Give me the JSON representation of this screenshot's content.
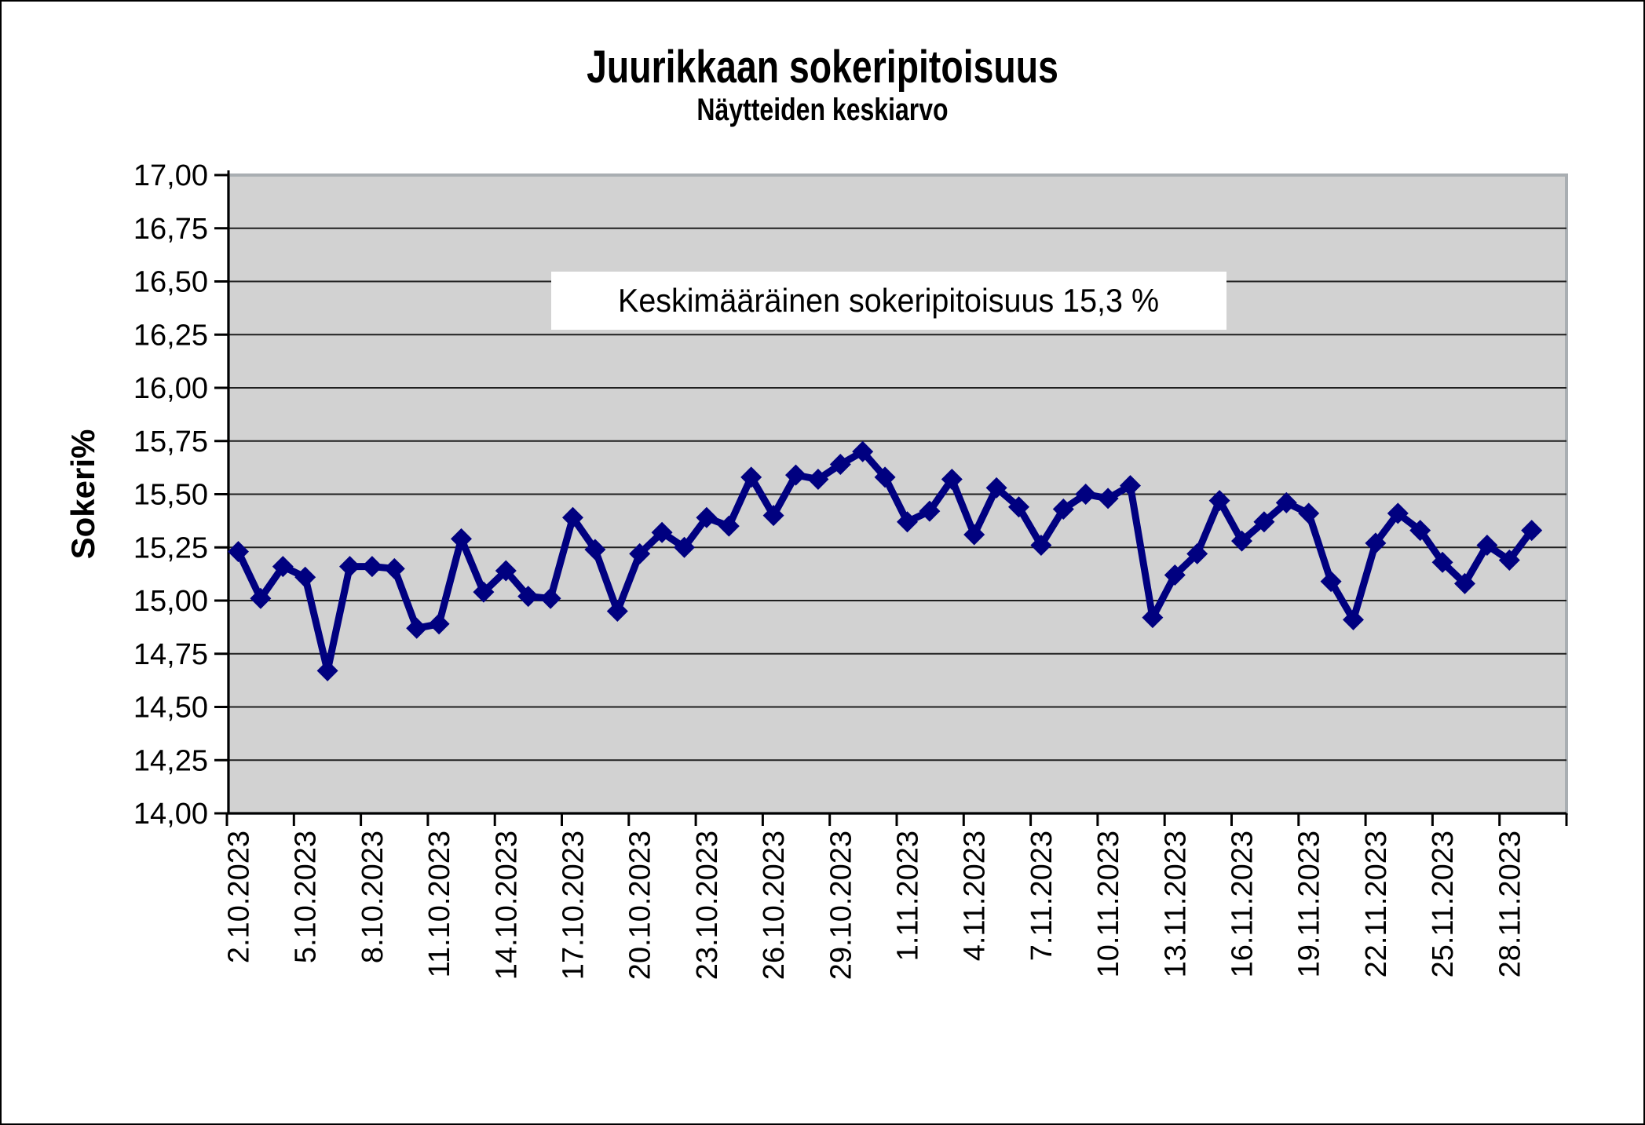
{
  "title": "Juurikkaan sokeripitoisuus",
  "subtitle": "Näytteiden keskiarvo",
  "annotation": "Keskimääräinen sokeripitoisuus 15,3 %",
  "colors": {
    "line": "#000080",
    "plot_bg": "#d2d2d2",
    "plot_border": "#a9aeb2",
    "grid": "#1f1f1f",
    "axis": "#000000",
    "annotation_bg": "#ffffff",
    "page_bg": "#ffffff",
    "outer_border": "#000000",
    "text": "#000000"
  },
  "chart_data": {
    "type": "line",
    "title": "Juurikkaan sokeripitoisuus",
    "subtitle": "Näytteiden keskiarvo",
    "xlabel": "",
    "ylabel": "Sokeri%",
    "ylim": [
      14.0,
      17.0
    ],
    "ytick_step": 0.25,
    "ytick_labels": [
      "17,00",
      "16,75",
      "16,50",
      "16,25",
      "16,00",
      "15,75",
      "15,50",
      "15,25",
      "15,00",
      "14,75",
      "14,50",
      "14,25",
      "14,00"
    ],
    "grid": "horizontal",
    "legend": "none",
    "marker": "diamond",
    "annotation": "Keskimääräinen sokeripitoisuus 15,3 %",
    "x": [
      "2.10.2023",
      "3.10.2023",
      "4.10.2023",
      "5.10.2023",
      "6.10.2023",
      "7.10.2023",
      "8.10.2023",
      "9.10.2023",
      "10.10.2023",
      "11.10.2023",
      "12.10.2023",
      "13.10.2023",
      "14.10.2023",
      "15.10.2023",
      "16.10.2023",
      "17.10.2023",
      "18.10.2023",
      "19.10.2023",
      "20.10.2023",
      "21.10.2023",
      "22.10.2023",
      "23.10.2023",
      "24.10.2023",
      "25.10.2023",
      "26.10.2023",
      "27.10.2023",
      "28.10.2023",
      "29.10.2023",
      "30.10.2023",
      "31.10.2023",
      "1.11.2023",
      "2.11.2023",
      "3.11.2023",
      "4.11.2023",
      "5.11.2023",
      "6.11.2023",
      "7.11.2023",
      "8.11.2023",
      "9.11.2023",
      "10.11.2023",
      "11.11.2023",
      "12.11.2023",
      "13.11.2023",
      "14.11.2023",
      "15.11.2023",
      "16.11.2023",
      "17.11.2023",
      "18.11.2023",
      "19.11.2023",
      "20.11.2023",
      "21.11.2023",
      "22.11.2023",
      "23.11.2023",
      "24.11.2023",
      "25.11.2023",
      "26.11.2023",
      "27.11.2023",
      "28.11.2023",
      "29.11.2023"
    ],
    "x_tick_labels": [
      "2.10.2023",
      "5.10.2023",
      "8.10.2023",
      "11.10.2023",
      "14.10.2023",
      "17.10.2023",
      "20.10.2023",
      "23.10.2023",
      "26.10.2023",
      "29.10.2023",
      "1.11.2023",
      "4.11.2023",
      "7.11.2023",
      "10.11.2023",
      "13.11.2023",
      "16.11.2023",
      "19.11.2023",
      "22.11.2023",
      "25.11.2023",
      "28.11.2023"
    ],
    "series": [
      {
        "name": "Sokeri%",
        "values": [
          15.23,
          15.01,
          15.16,
          15.11,
          14.67,
          15.16,
          15.16,
          15.15,
          14.87,
          14.89,
          15.29,
          15.04,
          15.14,
          15.02,
          15.01,
          15.39,
          15.24,
          14.95,
          15.22,
          15.32,
          15.25,
          15.39,
          15.35,
          15.58,
          15.4,
          15.59,
          15.57,
          15.64,
          15.7,
          15.58,
          15.37,
          15.42,
          15.57,
          15.31,
          15.53,
          15.44,
          15.26,
          15.43,
          15.5,
          15.48,
          15.54,
          14.92,
          15.12,
          15.22,
          15.47,
          15.28,
          15.37,
          15.46,
          15.41,
          15.09,
          14.91,
          15.27,
          15.41,
          15.33,
          15.18,
          15.08,
          15.26,
          15.19,
          15.33
        ]
      }
    ]
  }
}
